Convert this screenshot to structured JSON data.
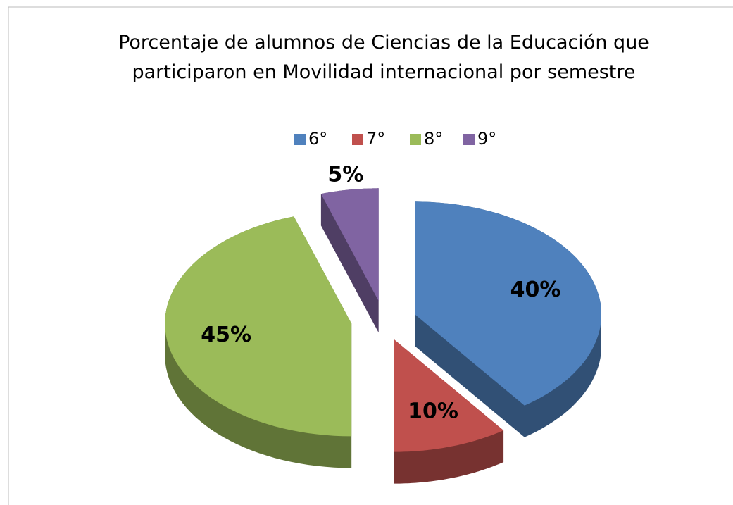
{
  "chart_data": {
    "type": "pie",
    "title": "Porcentaje de alumnos de Ciencias de la Educación que participaron en Movilidad internacional por semestre",
    "categories": [
      "6°",
      "7°",
      "8°",
      "9°"
    ],
    "values": [
      40,
      10,
      45,
      5
    ],
    "value_labels": [
      "40%",
      "10%",
      "45%",
      "5%"
    ],
    "colors": [
      "#4f81bd",
      "#c0504d",
      "#9bbb59",
      "#8064a2"
    ],
    "legend": "top"
  }
}
